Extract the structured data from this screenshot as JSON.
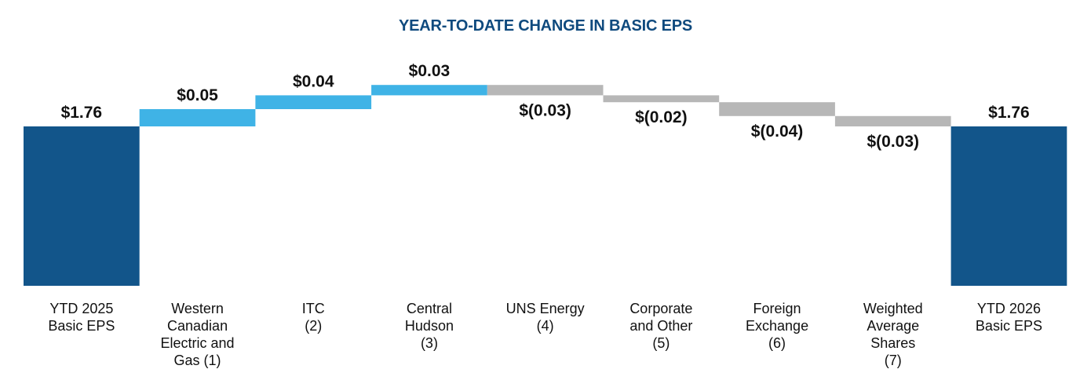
{
  "chart_data": {
    "type": "bar",
    "subtype": "waterfall",
    "title": "YEAR-TO-DATE CHANGE IN BASIC EPS",
    "xlabel": "",
    "ylabel": "",
    "legend": "none",
    "grid": false,
    "categories": [
      [
        "YTD 2025",
        "Basic EPS"
      ],
      [
        "Western",
        "Canadian",
        "Electric and",
        "Gas (1)"
      ],
      [
        "ITC",
        "(2)"
      ],
      [
        "Central",
        "Hudson",
        "(3)"
      ],
      [
        "UNS Energy",
        "(4)"
      ],
      [
        "Corporate",
        "and Other",
        "(5)"
      ],
      [
        "Foreign",
        "Exchange",
        "(6)"
      ],
      [
        "Weighted",
        "Average",
        "Shares",
        "(7)"
      ],
      [
        "YTD 2026",
        "Basic EPS"
      ]
    ],
    "values": [
      1.76,
      0.05,
      0.04,
      0.03,
      -0.03,
      -0.02,
      -0.04,
      -0.03,
      1.76
    ],
    "bar_kinds": [
      "total",
      "delta",
      "delta",
      "delta",
      "delta",
      "delta",
      "delta",
      "delta",
      "total"
    ],
    "value_labels": [
      "$1.76",
      "$0.05",
      "$0.04",
      "$0.03",
      "$(0.03)",
      "$(0.02)",
      "$(0.04)",
      "$(0.03)",
      "$1.76"
    ]
  },
  "colors": {
    "title": "#0f4a7e",
    "total": "#12558a",
    "increase": "#3fb3e6",
    "decrease": "#b7b7b7"
  }
}
